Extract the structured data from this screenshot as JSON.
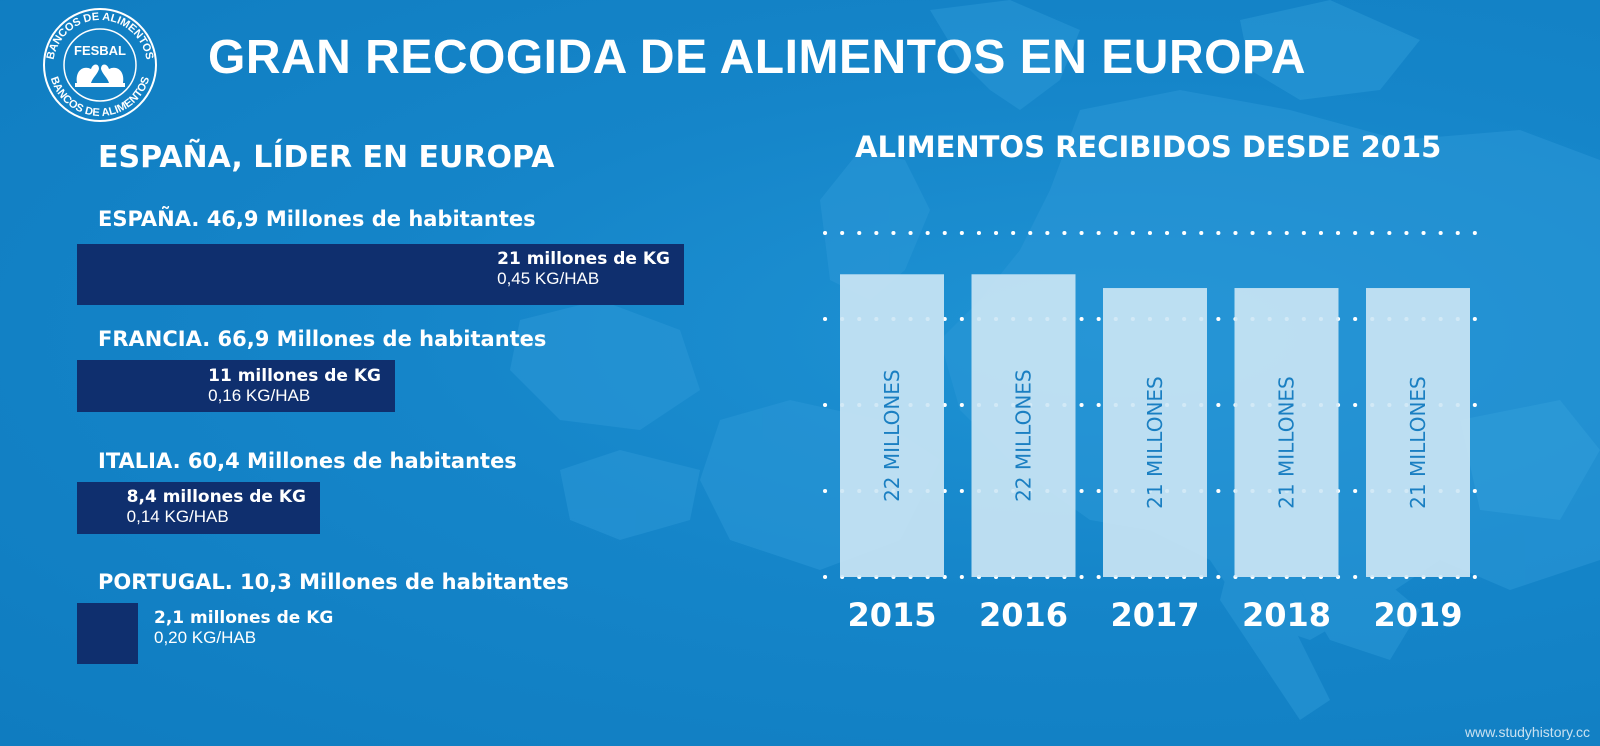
{
  "header": {
    "title": "GRAN RECOGIDA DE ALIMENTOS EN EUROPA",
    "logo_text": "FESBAL",
    "logo_ring_text": "BANCOS DE ALIMENTOS"
  },
  "left_panel": {
    "subtitle": "ESPAÑA, LÍDER EN EUROPA",
    "countries": [
      {
        "label": "ESPAÑA. 46,9 Millones de habitantes",
        "kg": "21 millones de KG",
        "per_hab": "0,45 KG/HAB",
        "kg_value": 21
      },
      {
        "label": "FRANCIA. 66,9 Millones de habitantes",
        "kg": "11 millones de KG",
        "per_hab": "0,16 KG/HAB",
        "kg_value": 11
      },
      {
        "label": "ITALIA. 60,4 Millones de habitantes",
        "kg": "8,4 millones de KG",
        "per_hab": "0,14 KG/HAB",
        "kg_value": 8.4
      },
      {
        "label": "PORTUGAL. 10,3 Millones de habitantes",
        "kg": "2,1 millones de KG",
        "per_hab": "0,20 KG/HAB",
        "kg_value": 2.1
      }
    ]
  },
  "right_panel": {
    "subtitle": "ALIMENTOS RECIBIDOS DESDE 2015"
  },
  "chart_data": [
    {
      "type": "bar",
      "orientation": "horizontal",
      "title": "ESPAÑA, LÍDER EN EUROPA",
      "categories": [
        "ESPAÑA",
        "FRANCIA",
        "ITALIA",
        "PORTUGAL"
      ],
      "values": [
        21,
        11,
        8.4,
        2.1
      ],
      "value_labels": [
        "21 millones de KG",
        "11 millones de KG",
        "8,4 millones de KG",
        "2,1 millones de KG"
      ],
      "secondary_labels": [
        "0,45 KG/HAB",
        "0,16 KG/HAB",
        "0,14 KG/HAB",
        "0,20 KG/HAB"
      ]
    },
    {
      "type": "bar",
      "orientation": "vertical",
      "title": "ALIMENTOS RECIBIDOS DESDE 2015",
      "categories": [
        "2015",
        "2016",
        "2017",
        "2018",
        "2019"
      ],
      "values": [
        22,
        22,
        21,
        21,
        21
      ],
      "value_labels": [
        "22 MILLONES",
        "22 MILLONES",
        "21 MILLONES",
        "21 MILLONES",
        "21 MILLONES"
      ],
      "grid": true
    }
  ],
  "watermark": "www.studyhistory.cc",
  "colors": {
    "background": "#1585c9",
    "map_land": "#2e9bd9",
    "left_bar": "#0f2f6e",
    "right_bar": "#cde7f5",
    "right_bar_label": "#1a7fc2",
    "text": "#ffffff"
  }
}
